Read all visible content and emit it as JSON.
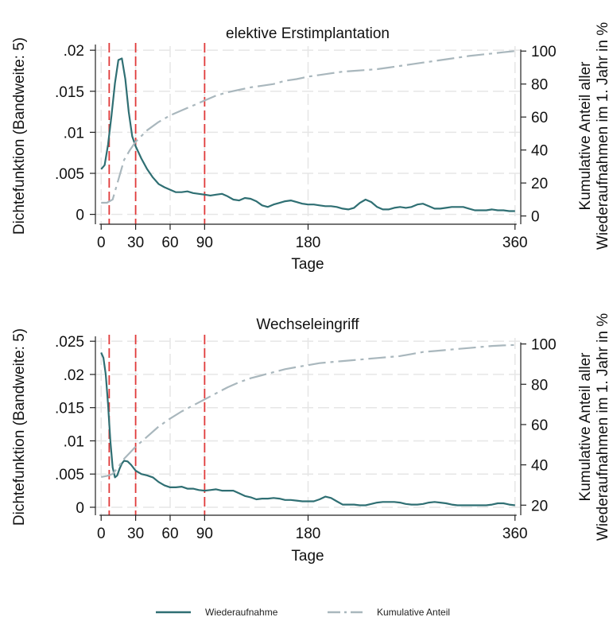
{
  "colors": {
    "density": "#2f6f73",
    "cumulative": "#a9b7bd",
    "vline": "#e03a3a",
    "grid": "#e6e6e6"
  },
  "legend": {
    "density_label": "Wiederaufnahme",
    "cumulative_label": "Kumulative Anteil"
  },
  "chart_data": [
    {
      "type": "line",
      "title": "elektive Erstimplantation",
      "xlabel": "Tage",
      "ylabel": "Dichtefunktion (Bandweite: 5)",
      "y2label_line1": "Kumulative Anteil aller",
      "y2label_line2": "Wiederaufnahmen im 1. Jahr in %",
      "x_ticks": [
        0,
        30,
        60,
        90,
        180,
        360
      ],
      "x_tick_labels": [
        "0",
        "30",
        "60",
        "90",
        "180",
        "360"
      ],
      "xlim": [
        -5,
        365
      ],
      "y_ticks": [
        0,
        0.005,
        0.01,
        0.015,
        0.02
      ],
      "y_tick_labels": [
        "0",
        ".005",
        ".01",
        ".015",
        ".02"
      ],
      "ylim": [
        -0.0012,
        0.0205
      ],
      "y2_ticks": [
        0,
        20,
        40,
        60,
        80,
        100
      ],
      "y2_tick_labels": [
        "0",
        "20",
        "40",
        "60",
        "80",
        "100"
      ],
      "y2lim": [
        -5,
        103
      ],
      "vlines": [
        7,
        30,
        90
      ],
      "grid": true,
      "series": [
        {
          "name": "Wiederaufnahme",
          "axis": "left",
          "x": [
            0,
            3,
            6,
            9,
            12,
            15,
            18,
            21,
            24,
            27,
            30,
            35,
            40,
            45,
            50,
            55,
            60,
            65,
            70,
            75,
            80,
            85,
            90,
            95,
            100,
            105,
            110,
            115,
            120,
            125,
            130,
            135,
            140,
            145,
            150,
            155,
            160,
            165,
            170,
            175,
            180,
            185,
            190,
            195,
            200,
            205,
            210,
            215,
            220,
            225,
            230,
            235,
            240,
            245,
            250,
            255,
            260,
            265,
            270,
            275,
            280,
            285,
            290,
            295,
            300,
            305,
            310,
            315,
            320,
            325,
            330,
            335,
            340,
            345,
            350,
            355,
            360
          ],
          "values": [
            0.0055,
            0.006,
            0.0085,
            0.012,
            0.016,
            0.0188,
            0.019,
            0.0165,
            0.0125,
            0.0095,
            0.0083,
            0.0068,
            0.0055,
            0.0045,
            0.0037,
            0.0033,
            0.003,
            0.0027,
            0.0027,
            0.0028,
            0.0026,
            0.0025,
            0.0024,
            0.0023,
            0.0024,
            0.0025,
            0.0022,
            0.0018,
            0.0017,
            0.002,
            0.0019,
            0.0016,
            0.0011,
            0.0009,
            0.0012,
            0.0014,
            0.0016,
            0.0017,
            0.0015,
            0.0013,
            0.0012,
            0.0012,
            0.0011,
            0.001,
            0.001,
            0.0009,
            0.0007,
            0.0006,
            0.0008,
            0.0014,
            0.0018,
            0.0015,
            0.0009,
            0.0006,
            0.0006,
            0.0008,
            0.0009,
            0.0008,
            0.0009,
            0.0012,
            0.0013,
            0.001,
            0.0007,
            0.0007,
            0.0008,
            0.0009,
            0.0009,
            0.0009,
            0.0007,
            0.0005,
            0.0005,
            0.0005,
            0.0006,
            0.0005,
            0.0005,
            0.0004,
            0.0004
          ]
        },
        {
          "name": "Kumulative Anteil",
          "axis": "right",
          "x": [
            0,
            5,
            10,
            15,
            20,
            25,
            30,
            40,
            50,
            60,
            70,
            80,
            90,
            100,
            110,
            120,
            130,
            140,
            150,
            160,
            170,
            180,
            190,
            200,
            210,
            220,
            230,
            240,
            250,
            260,
            270,
            280,
            290,
            300,
            310,
            320,
            330,
            340,
            350,
            360
          ],
          "values": [
            8,
            8,
            10,
            22,
            34,
            40,
            45,
            52,
            57,
            61,
            64,
            67,
            70,
            73,
            75,
            76.5,
            78,
            79,
            80,
            82,
            83,
            84.5,
            85.5,
            86.5,
            87.5,
            88,
            88.5,
            89,
            90,
            91,
            92,
            93,
            94,
            95,
            96,
            97,
            97.8,
            98.5,
            99.3,
            100
          ]
        }
      ]
    },
    {
      "type": "line",
      "title": "Wechseleingriff",
      "xlabel": "Tage",
      "ylabel": "Dichtefunktion (Bandweite: 5)",
      "y2label_line1": "Kumulative Anteil aller",
      "y2label_line2": "Wiederaufnahmen im 1. Jahr in %",
      "x_ticks": [
        0,
        30,
        60,
        90,
        180,
        360
      ],
      "x_tick_labels": [
        "0",
        "30",
        "60",
        "90",
        "180",
        "360"
      ],
      "xlim": [
        -5,
        365
      ],
      "y_ticks": [
        0,
        0.005,
        0.01,
        0.015,
        0.02,
        0.025
      ],
      "y_tick_labels": [
        "0",
        ".005",
        ".01",
        ".015",
        ".02",
        ".025"
      ],
      "ylim": [
        -0.0012,
        0.0255
      ],
      "y2_ticks": [
        20,
        40,
        60,
        80,
        100
      ],
      "y2_tick_labels": [
        "20",
        "40",
        "60",
        "80",
        "100"
      ],
      "y2lim": [
        15,
        103
      ],
      "vlines": [
        7,
        30,
        90
      ],
      "grid": true,
      "series": [
        {
          "name": "Wiederaufnahme",
          "axis": "left",
          "x": [
            0,
            2,
            4,
            6,
            8,
            10,
            12,
            14,
            16,
            18,
            20,
            23,
            26,
            30,
            35,
            40,
            45,
            50,
            55,
            60,
            65,
            70,
            75,
            80,
            85,
            90,
            95,
            100,
            105,
            110,
            115,
            120,
            125,
            130,
            135,
            140,
            145,
            150,
            155,
            160,
            165,
            170,
            175,
            180,
            185,
            190,
            195,
            200,
            205,
            210,
            215,
            220,
            225,
            230,
            235,
            240,
            245,
            250,
            255,
            260,
            265,
            270,
            275,
            280,
            285,
            290,
            295,
            300,
            305,
            310,
            315,
            320,
            325,
            330,
            335,
            340,
            345,
            350,
            355,
            360
          ],
          "values": [
            0.0233,
            0.0225,
            0.02,
            0.0155,
            0.01,
            0.006,
            0.0045,
            0.0048,
            0.0058,
            0.0066,
            0.007,
            0.0069,
            0.0064,
            0.0055,
            0.005,
            0.0048,
            0.0045,
            0.0038,
            0.0033,
            0.003,
            0.003,
            0.0031,
            0.0028,
            0.0028,
            0.0026,
            0.0025,
            0.0026,
            0.0027,
            0.0025,
            0.0025,
            0.0025,
            0.0021,
            0.0017,
            0.0015,
            0.0012,
            0.0013,
            0.0013,
            0.0014,
            0.0013,
            0.0011,
            0.0011,
            0.001,
            0.0009,
            0.0009,
            0.0009,
            0.0012,
            0.0016,
            0.0014,
            0.0009,
            0.0004,
            0.0004,
            0.0004,
            0.0003,
            0.0003,
            0.0005,
            0.0007,
            0.0008,
            0.0008,
            0.0008,
            0.0007,
            0.0005,
            0.0004,
            0.0004,
            0.0005,
            0.0007,
            0.0008,
            0.0007,
            0.0006,
            0.0004,
            0.0003,
            0.0003,
            0.0003,
            0.0003,
            0.0003,
            0.0003,
            0.0004,
            0.0006,
            0.0006,
            0.0004,
            0.0003
          ]
        },
        {
          "name": "Kumulative Anteil",
          "axis": "right",
          "x": [
            0,
            5,
            10,
            15,
            20,
            25,
            30,
            40,
            50,
            60,
            70,
            80,
            90,
            100,
            110,
            120,
            130,
            140,
            150,
            160,
            170,
            180,
            190,
            200,
            210,
            220,
            230,
            240,
            250,
            260,
            270,
            280,
            290,
            300,
            310,
            320,
            330,
            340,
            350,
            360
          ],
          "values": [
            34,
            34.5,
            35.5,
            39,
            43,
            46,
            49,
            54,
            59,
            63,
            66.5,
            69.5,
            72.5,
            75.5,
            78.5,
            81,
            83,
            84.5,
            86,
            87.5,
            88.5,
            89.5,
            90.5,
            91,
            91.5,
            92,
            92.5,
            93,
            93.5,
            94,
            95,
            96,
            96.5,
            97,
            97.5,
            98,
            98.5,
            99,
            99.3,
            99.5
          ]
        }
      ]
    }
  ]
}
